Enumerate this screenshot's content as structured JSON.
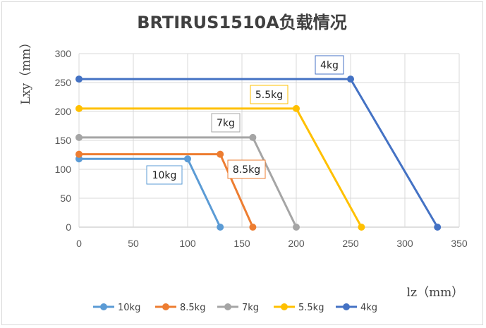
{
  "chart_data": {
    "type": "line",
    "title": "BRTIRUS1510A负载情况",
    "xlabel": "lz（mm）",
    "ylabel": "Lxy（mm）",
    "xlim": [
      0,
      350
    ],
    "ylim": [
      0,
      300
    ],
    "xticks": [
      0,
      50,
      100,
      150,
      200,
      250,
      300,
      350
    ],
    "yticks": [
      0,
      50,
      100,
      150,
      200,
      250,
      300
    ],
    "grid": true,
    "legend": "bottom",
    "series": [
      {
        "name": "10kg",
        "color": "#5B9BD5",
        "points": [
          [
            0,
            118
          ],
          [
            100,
            118
          ],
          [
            130,
            0
          ]
        ],
        "label": "10kg"
      },
      {
        "name": "8.5kg",
        "color": "#ED7D31",
        "points": [
          [
            0,
            126
          ],
          [
            130,
            126
          ],
          [
            160,
            0
          ]
        ],
        "label": "8.5kg"
      },
      {
        "name": "7kg",
        "color": "#A5A5A5",
        "points": [
          [
            0,
            155
          ],
          [
            160,
            155
          ],
          [
            200,
            0
          ]
        ],
        "label": "7kg"
      },
      {
        "name": "5.5kg",
        "color": "#FFC000",
        "points": [
          [
            0,
            205
          ],
          [
            200,
            205
          ],
          [
            260,
            0
          ]
        ],
        "label": "5.5kg"
      },
      {
        "name": "4kg",
        "color": "#4472C4",
        "points": [
          [
            0,
            256
          ],
          [
            250,
            256
          ],
          [
            330,
            0
          ]
        ],
        "label": "4kg"
      }
    ]
  }
}
